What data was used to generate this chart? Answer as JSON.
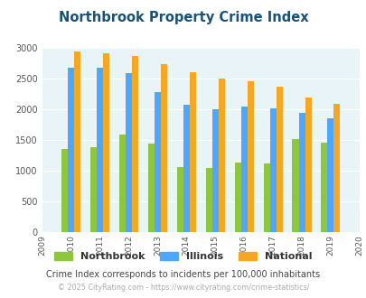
{
  "title": "Northbrook Property Crime Index",
  "data_years": [
    2010,
    2011,
    2012,
    2013,
    2014,
    2015,
    2016,
    2017,
    2018,
    2019
  ],
  "northbrook": [
    1350,
    1390,
    1590,
    1440,
    1060,
    1050,
    1140,
    1120,
    1520,
    1460
  ],
  "illinois": [
    2670,
    2670,
    2580,
    2280,
    2080,
    2000,
    2050,
    2010,
    1940,
    1850
  ],
  "national": [
    2940,
    2910,
    2860,
    2740,
    2600,
    2500,
    2460,
    2360,
    2190,
    2090
  ],
  "color_northbrook": "#8dc63f",
  "color_illinois": "#4da6ff",
  "color_national": "#f5a623",
  "ylim": [
    0,
    3000
  ],
  "yticks": [
    0,
    500,
    1000,
    1500,
    2000,
    2500,
    3000
  ],
  "xlim": [
    2009,
    2020
  ],
  "bg_color": "#e8f4f8",
  "title_color": "#1a5276",
  "subtitle": "Crime Index corresponds to incidents per 100,000 inhabitants",
  "footer": "© 2025 CityRating.com - https://www.cityrating.com/crime-statistics/",
  "subtitle_color": "#444444",
  "footer_color": "#aaaaaa",
  "bar_width": 0.22
}
